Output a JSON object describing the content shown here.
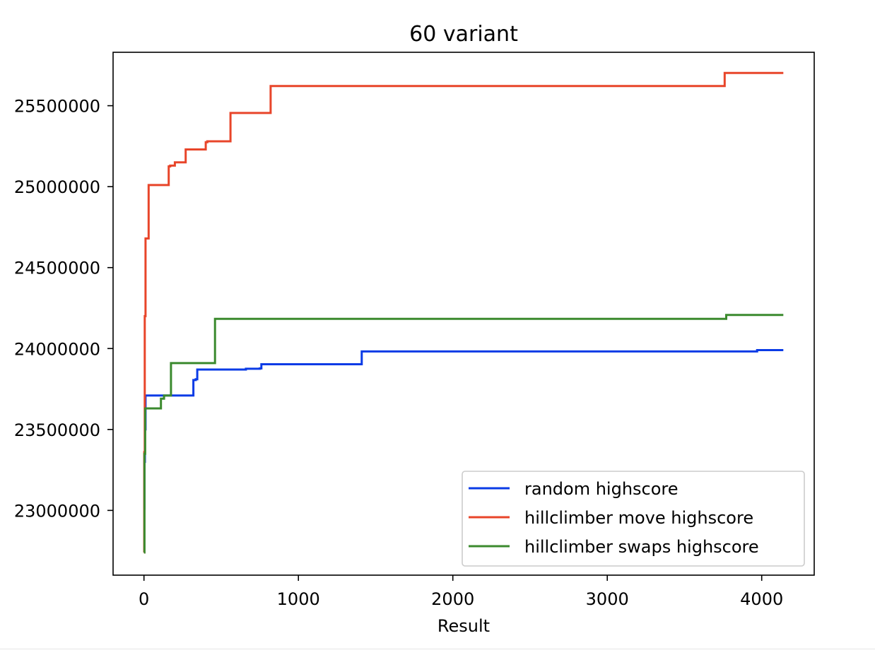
{
  "chart_data": {
    "type": "line",
    "title": "60 variant",
    "xlabel": "Result",
    "ylabel": "",
    "xlim": [
      -200,
      4340
    ],
    "ylim": [
      22600000,
      25830000
    ],
    "xticks": [
      0,
      1000,
      2000,
      3000,
      4000
    ],
    "xtick_labels": [
      "0",
      "1000",
      "2000",
      "3000",
      "4000"
    ],
    "yticks": [
      23000000,
      23500000,
      24000000,
      24500000,
      25000000,
      25500000
    ],
    "ytick_labels": [
      "23000000",
      "23500000",
      "24000000",
      "24500000",
      "25000000",
      "25500000"
    ],
    "grid": false,
    "legend_position": "bottom-right",
    "step": "post",
    "series": [
      {
        "name": "random highscore",
        "color": "#0a3be6",
        "x": [
          0,
          3,
          6,
          10,
          320,
          335,
          345,
          650,
          660,
          750,
          760,
          1400,
          1410,
          3960,
          3970,
          4140
        ],
        "y": [
          23010000,
          23300000,
          23500000,
          23710000,
          23805000,
          23810000,
          23870000,
          23870000,
          23875000,
          23877000,
          23903000,
          23903000,
          23982000,
          23982000,
          23990000,
          23990000
        ]
      },
      {
        "name": "hillclimber move highscore",
        "color": "#e8452a",
        "x": [
          0,
          2,
          5,
          10,
          30,
          160,
          170,
          200,
          270,
          400,
          410,
          560,
          570,
          820,
          830,
          3760,
          3770,
          4140
        ],
        "y": [
          22740000,
          23360000,
          24200000,
          24680000,
          25010000,
          25125000,
          25130000,
          25150000,
          25230000,
          25275000,
          25280000,
          25455000,
          25455000,
          25622000,
          25622000,
          25702000,
          25702000,
          25702000
        ]
      },
      {
        "name": "hillclimber swaps highscore",
        "color": "#3b8a2e",
        "x": [
          0,
          3,
          8,
          110,
          130,
          165,
          175,
          450,
          460,
          3760,
          3770,
          4140
        ],
        "y": [
          22740000,
          23350000,
          23630000,
          23690000,
          23710000,
          23710000,
          23910000,
          23910000,
          24183000,
          24183000,
          24207000,
          24207000
        ]
      }
    ]
  }
}
